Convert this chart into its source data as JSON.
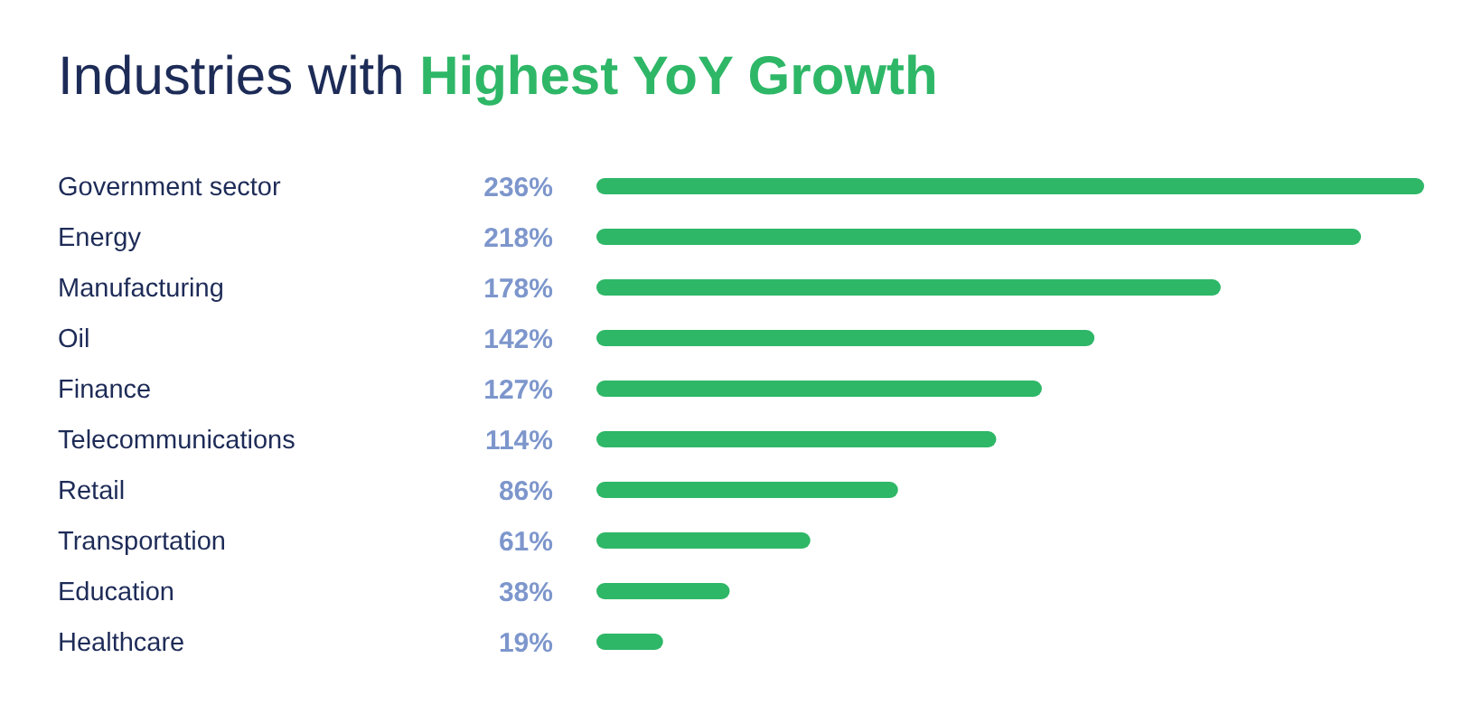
{
  "chart_data": {
    "type": "bar",
    "orientation": "horizontal",
    "title": "Industries with Highest YoY Growth",
    "categories": [
      "Government sector",
      "Energy",
      "Manufacturing",
      "Oil",
      "Finance",
      "Telecommunications",
      "Retail",
      "Transportation",
      "Education",
      "Healthcare"
    ],
    "values": [
      236,
      218,
      178,
      142,
      127,
      114,
      86,
      61,
      38,
      19
    ],
    "value_labels": [
      "236%",
      "218%",
      "178%",
      "142%",
      "127%",
      "114%",
      "86%",
      "61%",
      "38%",
      "19%"
    ],
    "color": "#2eb767"
  }
}
